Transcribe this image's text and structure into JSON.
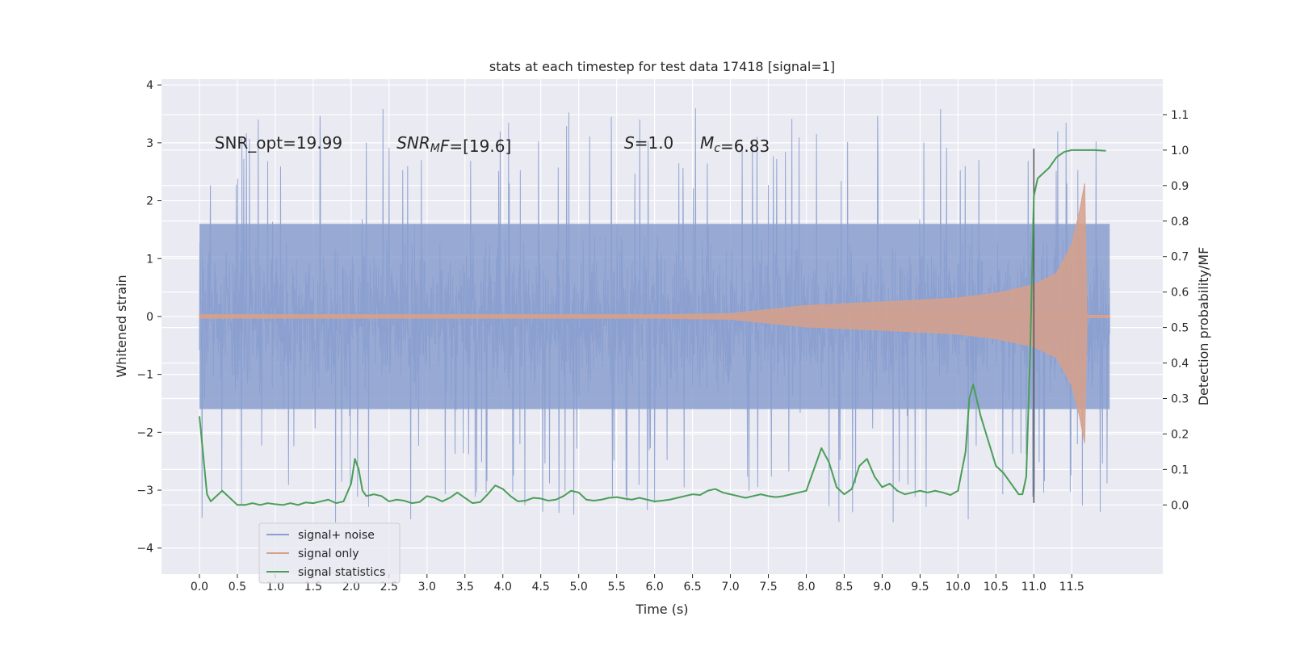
{
  "chart_data": {
    "type": "line",
    "title": "stats at each timestep for test data 17418 [signal=1]",
    "xlabel": "Time (s)",
    "ylabel": "Whitened strain",
    "y2label": "Detection probability/MF",
    "xlim": [
      -0.5,
      12.7
    ],
    "ylim": [
      -4.45,
      4.1
    ],
    "y2lim": [
      -0.195,
      1.2
    ],
    "x_ticks": [
      0.0,
      0.5,
      1.0,
      1.5,
      2.0,
      2.5,
      3.0,
      3.5,
      4.0,
      4.5,
      5.0,
      5.5,
      6.0,
      6.5,
      7.0,
      7.5,
      8.0,
      8.5,
      9.0,
      9.5,
      10.0,
      10.5,
      11.0,
      11.5
    ],
    "x_tick_labels": [
      "0.0",
      "0.5",
      "1.0",
      "1.5",
      "2.0",
      "2.5",
      "3.0",
      "3.5",
      "4.0",
      "4.5",
      "5.0",
      "5.5",
      "6.0",
      "6.5",
      "7.0",
      "7.5",
      "8.0",
      "8.5",
      "9.0",
      "9.5",
      "10.0",
      "10.5",
      "11.0",
      "11.5"
    ],
    "y_ticks": [
      -4,
      -3,
      -2,
      -1,
      0,
      1,
      2,
      3,
      4
    ],
    "y_tick_labels": [
      "−4",
      "−3",
      "−2",
      "−1",
      "0",
      "1",
      "2",
      "3",
      "4"
    ],
    "y2_ticks": [
      0.0,
      0.1,
      0.2,
      0.3,
      0.4,
      0.5,
      0.6,
      0.7,
      0.8,
      0.9,
      1.0,
      1.1
    ],
    "y2_tick_labels": [
      "0.0",
      "0.1",
      "0.2",
      "0.3",
      "0.4",
      "0.5",
      "0.6",
      "0.7",
      "0.8",
      "0.9",
      "1.0",
      "1.1"
    ],
    "grid": true,
    "legend_position": "lower-left",
    "annotations": [
      {
        "x": 0.2,
        "y": 3.0,
        "parts": [
          {
            "t": "SNR_opt=19.99",
            "style": "normal"
          }
        ]
      },
      {
        "x": 2.6,
        "y": 3.0,
        "parts": [
          {
            "t": "SNR",
            "style": "italic"
          },
          {
            "t": "M",
            "style": "italic-sub"
          },
          {
            "t": "F",
            "style": "italic"
          },
          {
            "t": "=[19.6]",
            "style": "normal"
          }
        ]
      },
      {
        "x": 5.6,
        "y": 3.0,
        "parts": [
          {
            "t": "S",
            "style": "italic"
          },
          {
            "t": "=1.0",
            "style": "normal"
          }
        ]
      },
      {
        "x": 6.6,
        "y": 3.0,
        "parts": [
          {
            "t": "M",
            "style": "italic"
          },
          {
            "t": "c",
            "style": "italic-sub"
          },
          {
            "t": "=6.83",
            "style": "normal"
          }
        ]
      }
    ],
    "vline": {
      "x": 11.0,
      "ymin": -3.22,
      "ymax": 2.9,
      "color": "#555555"
    },
    "series": [
      {
        "name": "signal+ noise",
        "color": "#8a9fcf",
        "axis": "left",
        "kind": "noise",
        "x_range": [
          0.0,
          12.0
        ],
        "typical_amplitude": 1.1,
        "peak_range": [
          -4.1,
          3.75
        ]
      },
      {
        "name": "signal only",
        "color": "#d7a08a",
        "axis": "left",
        "kind": "chirp",
        "x_range": [
          0.0,
          12.0
        ],
        "envelope_x": [
          0.0,
          6.0,
          7.0,
          7.5,
          8.0,
          9.0,
          10.0,
          10.5,
          11.0,
          11.3,
          11.5,
          11.6,
          11.67,
          11.7,
          12.0
        ],
        "envelope_y": [
          0.03,
          0.03,
          0.05,
          0.12,
          0.19,
          0.25,
          0.32,
          0.4,
          0.55,
          0.75,
          1.25,
          1.8,
          2.3,
          0.02,
          0.02
        ]
      },
      {
        "name": "signal statistics",
        "color": "#4a9e58",
        "axis": "right",
        "kind": "line",
        "x": [
          0.0,
          0.05,
          0.1,
          0.15,
          0.2,
          0.3,
          0.4,
          0.5,
          0.6,
          0.7,
          0.8,
          0.9,
          1.0,
          1.1,
          1.2,
          1.3,
          1.4,
          1.5,
          1.6,
          1.7,
          1.8,
          1.9,
          2.0,
          2.05,
          2.1,
          2.15,
          2.2,
          2.3,
          2.4,
          2.5,
          2.6,
          2.7,
          2.8,
          2.9,
          3.0,
          3.1,
          3.2,
          3.3,
          3.4,
          3.5,
          3.6,
          3.7,
          3.8,
          3.9,
          4.0,
          4.1,
          4.2,
          4.3,
          4.4,
          4.5,
          4.6,
          4.7,
          4.8,
          4.9,
          5.0,
          5.1,
          5.2,
          5.3,
          5.4,
          5.5,
          5.6,
          5.7,
          5.8,
          5.9,
          6.0,
          6.1,
          6.2,
          6.3,
          6.4,
          6.5,
          6.6,
          6.7,
          6.8,
          6.9,
          7.0,
          7.1,
          7.2,
          7.3,
          7.4,
          7.5,
          7.6,
          7.7,
          7.8,
          7.9,
          8.0,
          8.1,
          8.2,
          8.3,
          8.4,
          8.5,
          8.6,
          8.7,
          8.8,
          8.9,
          9.0,
          9.1,
          9.2,
          9.3,
          9.4,
          9.5,
          9.6,
          9.7,
          9.8,
          9.9,
          10.0,
          10.1,
          10.15,
          10.2,
          10.3,
          10.4,
          10.5,
          10.6,
          10.7,
          10.8,
          10.85,
          10.9,
          10.95,
          11.0,
          11.05,
          11.1,
          11.2,
          11.3,
          11.4,
          11.5,
          11.6,
          11.7,
          11.8,
          11.95
        ],
        "y": [
          0.25,
          0.14,
          0.03,
          0.01,
          0.02,
          0.04,
          0.02,
          0.0,
          0.0,
          0.005,
          0.0,
          0.005,
          0.002,
          0.0,
          0.005,
          0.0,
          0.007,
          0.005,
          0.01,
          0.015,
          0.005,
          0.01,
          0.06,
          0.13,
          0.1,
          0.04,
          0.025,
          0.03,
          0.025,
          0.01,
          0.015,
          0.012,
          0.005,
          0.008,
          0.025,
          0.02,
          0.01,
          0.02,
          0.035,
          0.02,
          0.005,
          0.008,
          0.03,
          0.055,
          0.045,
          0.025,
          0.01,
          0.012,
          0.02,
          0.018,
          0.012,
          0.015,
          0.025,
          0.04,
          0.035,
          0.015,
          0.012,
          0.015,
          0.02,
          0.022,
          0.018,
          0.015,
          0.02,
          0.015,
          0.01,
          0.012,
          0.015,
          0.02,
          0.025,
          0.03,
          0.028,
          0.04,
          0.045,
          0.035,
          0.03,
          0.025,
          0.02,
          0.025,
          0.03,
          0.025,
          0.022,
          0.025,
          0.03,
          0.035,
          0.04,
          0.1,
          0.16,
          0.12,
          0.05,
          0.03,
          0.045,
          0.11,
          0.13,
          0.08,
          0.05,
          0.06,
          0.04,
          0.03,
          0.035,
          0.04,
          0.035,
          0.04,
          0.035,
          0.028,
          0.04,
          0.15,
          0.3,
          0.34,
          0.25,
          0.18,
          0.11,
          0.09,
          0.06,
          0.03,
          0.03,
          0.08,
          0.42,
          0.87,
          0.92,
          0.93,
          0.95,
          0.98,
          0.995,
          1.0,
          1.0,
          1.0,
          1.0,
          0.998
        ]
      }
    ]
  }
}
